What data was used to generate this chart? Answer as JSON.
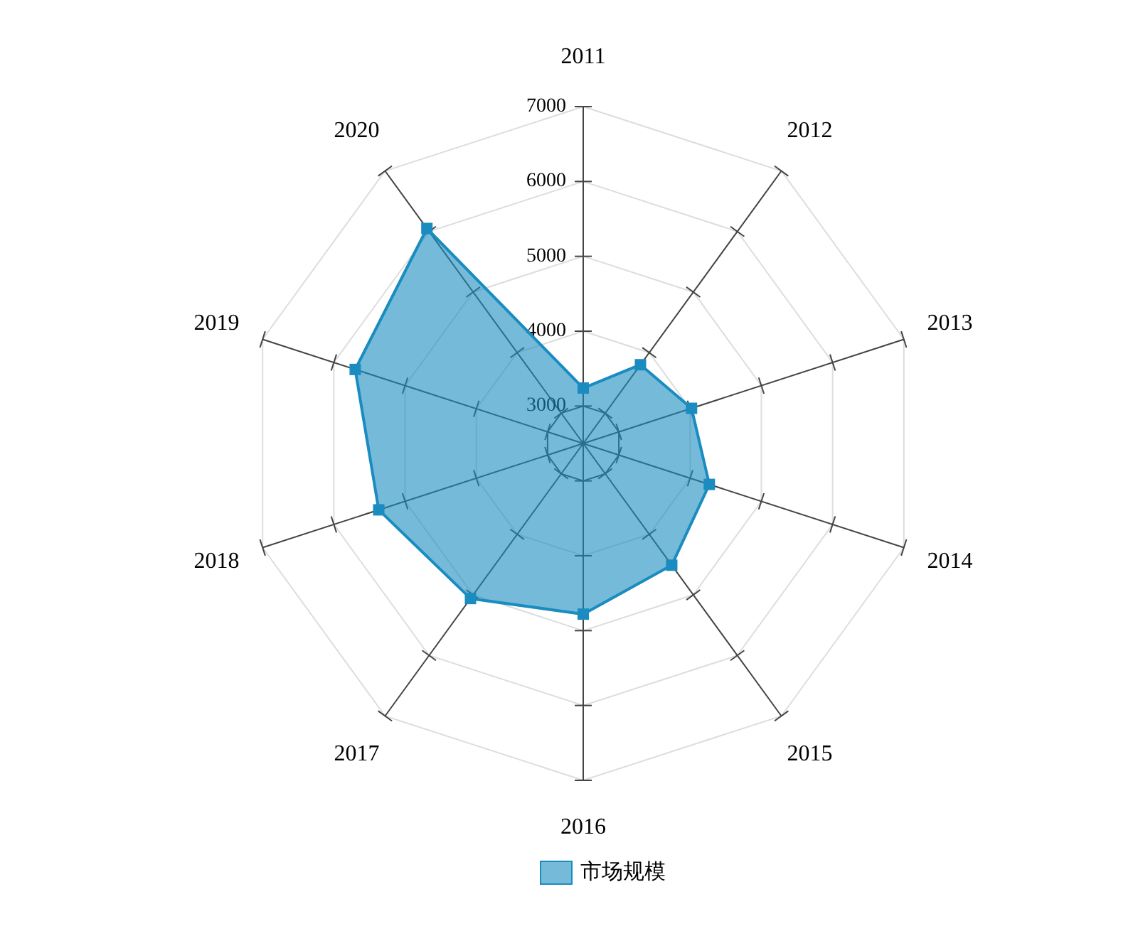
{
  "chart_data": {
    "type": "radar",
    "categories": [
      "2011",
      "2012",
      "2013",
      "2014",
      "2015",
      "2016",
      "2017",
      "2018",
      "2019",
      "2020"
    ],
    "series": [
      {
        "name": "市场规模",
        "color": "#1a8cc0",
        "values": [
          3240,
          3800,
          4020,
          4270,
          4510,
          4780,
          5060,
          5370,
          5700,
          6050
        ]
      }
    ],
    "ylim": [
      2500,
      7000
    ],
    "yticks": [
      3000,
      4000,
      5000,
      6000,
      7000
    ],
    "grid": true,
    "legend": "bottom",
    "marker": "square"
  }
}
